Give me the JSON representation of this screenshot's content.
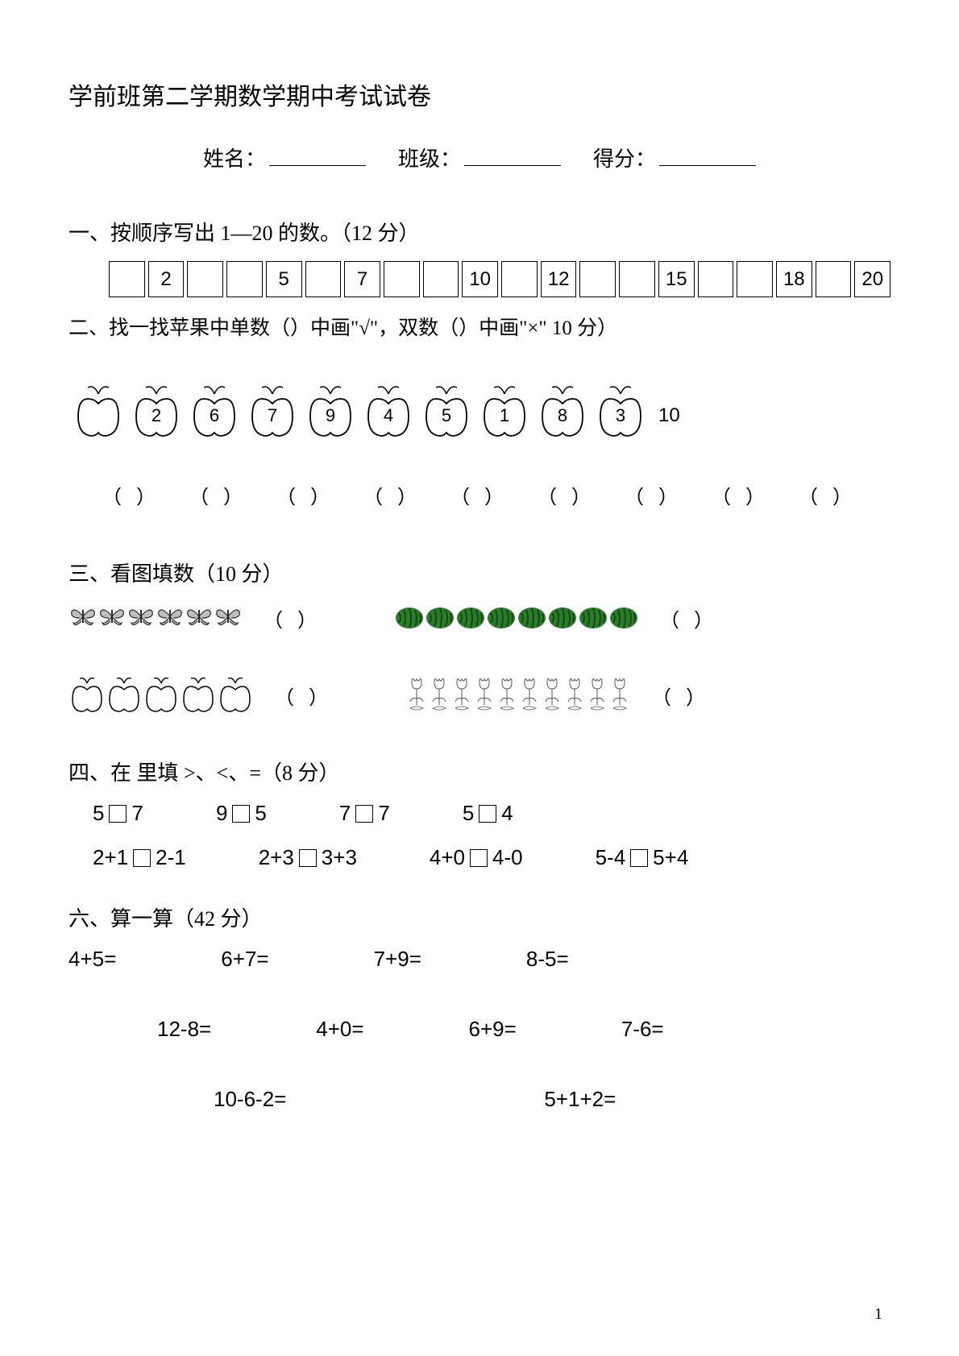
{
  "title": "学前班第二学期数学期中考试试卷",
  "info": {
    "name_label": "姓名：",
    "class_label": "班级：",
    "score_label": "得分："
  },
  "section1": {
    "heading": "一、按顺序写出 1—20 的数。（12 分）",
    "boxes": [
      "",
      "2",
      "",
      "",
      "5",
      "",
      "7",
      "",
      "",
      "10",
      "",
      "12",
      "",
      "",
      "15",
      "",
      "",
      "18",
      "",
      "20"
    ]
  },
  "section2": {
    "heading": "二、找一找苹果中单数（）中画\"√\"，双数（）中画\"×\" 10 分）",
    "apples": [
      "",
      "2",
      "6",
      "7",
      "9",
      "4",
      "5",
      "1",
      "8",
      "3"
    ],
    "last_num": "10",
    "parens": [
      "（  ）",
      "（  ）",
      "（  ）",
      "（  ）",
      "（  ）",
      "（  ）",
      "（  ）",
      "（  ）",
      "（  ）"
    ],
    "apple_stroke": "#000000"
  },
  "section3": {
    "heading": "三、看图填数（10 分）",
    "paren": "（  ）",
    "butterfly_count": 6,
    "watermelon_count": 8,
    "apple_count": 5,
    "tulip_count": 10,
    "colors": {
      "butterfly": "#2a2a2a",
      "watermelon_body": "#2d7a2d",
      "watermelon_stripe": "#0d4d0d",
      "apple_outline": "#000000",
      "tulip_outline": "#555555"
    }
  },
  "section4": {
    "heading": "四、在  里填 >、<、=（8 分）",
    "row1": [
      {
        "l": "5",
        "r": "7"
      },
      {
        "l": "9",
        "r": "5"
      },
      {
        "l": "7",
        "r": "7"
      },
      {
        "l": "5",
        "r": "4"
      }
    ],
    "row2": [
      {
        "l": "2+1",
        "r": "2-1"
      },
      {
        "l": "2+3",
        "r": "3+3"
      },
      {
        "l": "4+0",
        "r": "4-0"
      },
      {
        "l": "5-4",
        "r": "5+4"
      }
    ]
  },
  "section6": {
    "heading": "六、算一算（42 分）",
    "row1": [
      "4+5=",
      "6+7=",
      "7+9=",
      "8-5="
    ],
    "row2": [
      "12-8=",
      "4+0=",
      "6+9=",
      "7-6="
    ],
    "row3": [
      "10-6-2=",
      "5+1+2="
    ]
  },
  "page_number": "1"
}
